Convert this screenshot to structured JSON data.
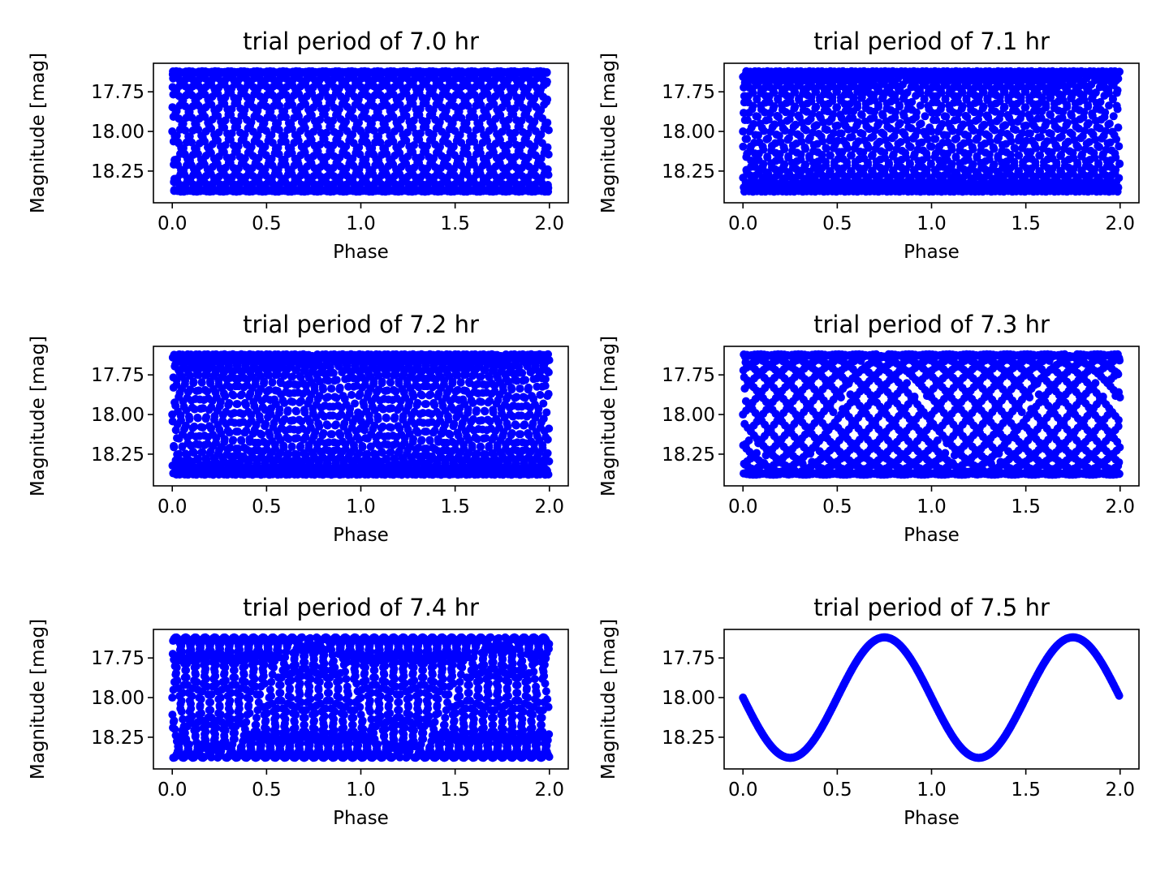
{
  "figure": {
    "background": "#ffffff",
    "marker_color": "#0000ff"
  },
  "chart_data": [
    {
      "type": "scatter",
      "title": "trial period of 7.0 hr",
      "xlabel": "Phase",
      "ylabel": "Magnitude [mag]",
      "xlim": [
        -0.1,
        2.1
      ],
      "ylim": [
        18.45,
        17.57
      ],
      "y_inverted": true,
      "xticks": [
        0.0,
        0.5,
        1.0,
        1.5,
        2.0
      ],
      "xtick_labels": [
        "0.0",
        "0.5",
        "1.0",
        "1.5",
        "2.0"
      ],
      "yticks": [
        17.75,
        18.0,
        18.25
      ],
      "ytick_labels": [
        "17.75",
        "18.00",
        "18.25"
      ],
      "grid": false,
      "series": [
        {
          "color": "#0000ff",
          "curve": "mag = 18.0 - 0.2*sin(2*pi*phase + shift)",
          "trial_period_hr": 7.0,
          "true_period_hr": 7.5,
          "phase_range": [
            0,
            2
          ],
          "mag_range": [
            17.62,
            18.38
          ]
        }
      ]
    },
    {
      "type": "scatter",
      "title": "trial period of 7.1 hr",
      "xlabel": "Phase",
      "ylabel": "Magnitude [mag]",
      "xlim": [
        -0.1,
        2.1
      ],
      "ylim": [
        18.45,
        17.57
      ],
      "y_inverted": true,
      "xticks": [
        0.0,
        0.5,
        1.0,
        1.5,
        2.0
      ],
      "xtick_labels": [
        "0.0",
        "0.5",
        "1.0",
        "1.5",
        "2.0"
      ],
      "yticks": [
        17.75,
        18.0,
        18.25
      ],
      "ytick_labels": [
        "17.75",
        "18.00",
        "18.25"
      ],
      "grid": false,
      "series": [
        {
          "color": "#0000ff",
          "trial_period_hr": 7.1,
          "true_period_hr": 7.5,
          "phase_range": [
            0,
            2
          ],
          "mag_range": [
            17.62,
            18.38
          ]
        }
      ]
    },
    {
      "type": "scatter",
      "title": "trial period of 7.2 hr",
      "xlabel": "Phase",
      "ylabel": "Magnitude [mag]",
      "xlim": [
        -0.1,
        2.1
      ],
      "ylim": [
        18.45,
        17.57
      ],
      "y_inverted": true,
      "xticks": [
        0.0,
        0.5,
        1.0,
        1.5,
        2.0
      ],
      "xtick_labels": [
        "0.0",
        "0.5",
        "1.0",
        "1.5",
        "2.0"
      ],
      "yticks": [
        17.75,
        18.0,
        18.25
      ],
      "ytick_labels": [
        "17.75",
        "18.00",
        "18.25"
      ],
      "grid": false,
      "series": [
        {
          "color": "#0000ff",
          "trial_period_hr": 7.2,
          "true_period_hr": 7.5,
          "phase_range": [
            0,
            2
          ],
          "mag_range": [
            17.62,
            18.38
          ]
        }
      ]
    },
    {
      "type": "scatter",
      "title": "trial period of 7.3 hr",
      "xlabel": "Phase",
      "ylabel": "Magnitude [mag]",
      "xlim": [
        -0.1,
        2.1
      ],
      "ylim": [
        18.45,
        17.57
      ],
      "y_inverted": true,
      "xticks": [
        0.0,
        0.5,
        1.0,
        1.5,
        2.0
      ],
      "xtick_labels": [
        "0.0",
        "0.5",
        "1.0",
        "1.5",
        "2.0"
      ],
      "yticks": [
        17.75,
        18.0,
        18.25
      ],
      "ytick_labels": [
        "17.75",
        "18.00",
        "18.25"
      ],
      "grid": false,
      "series": [
        {
          "color": "#0000ff",
          "trial_period_hr": 7.3,
          "true_period_hr": 7.5,
          "phase_range": [
            0,
            2
          ],
          "mag_range": [
            17.62,
            18.38
          ]
        }
      ]
    },
    {
      "type": "scatter",
      "title": "trial period of 7.4 hr",
      "xlabel": "Phase",
      "ylabel": "Magnitude [mag]",
      "xlim": [
        -0.1,
        2.1
      ],
      "ylim": [
        18.45,
        17.57
      ],
      "y_inverted": true,
      "xticks": [
        0.0,
        0.5,
        1.0,
        1.5,
        2.0
      ],
      "xtick_labels": [
        "0.0",
        "0.5",
        "1.0",
        "1.5",
        "2.0"
      ],
      "yticks": [
        17.75,
        18.0,
        18.25
      ],
      "ytick_labels": [
        "17.75",
        "18.00",
        "18.25"
      ],
      "grid": false,
      "series": [
        {
          "color": "#0000ff",
          "trial_period_hr": 7.4,
          "true_period_hr": 7.5,
          "phase_range": [
            0,
            2
          ],
          "mag_range": [
            17.62,
            18.38
          ]
        }
      ]
    },
    {
      "type": "scatter",
      "title": "trial period of 7.5 hr",
      "xlabel": "Phase",
      "ylabel": "Magnitude [mag]",
      "xlim": [
        -0.1,
        2.1
      ],
      "ylim": [
        18.45,
        17.57
      ],
      "y_inverted": true,
      "xticks": [
        0.0,
        0.5,
        1.0,
        1.5,
        2.0
      ],
      "xtick_labels": [
        "0.0",
        "0.5",
        "1.0",
        "1.5",
        "2.0"
      ],
      "yticks": [
        17.75,
        18.0,
        18.25
      ],
      "ytick_labels": [
        "17.75",
        "18.00",
        "18.25"
      ],
      "grid": false,
      "series": [
        {
          "color": "#0000ff",
          "trial_period_hr": 7.5,
          "true_period_hr": 7.5,
          "phase_range": [
            0,
            2
          ],
          "mag_range": [
            17.62,
            18.38
          ]
        }
      ]
    }
  ]
}
